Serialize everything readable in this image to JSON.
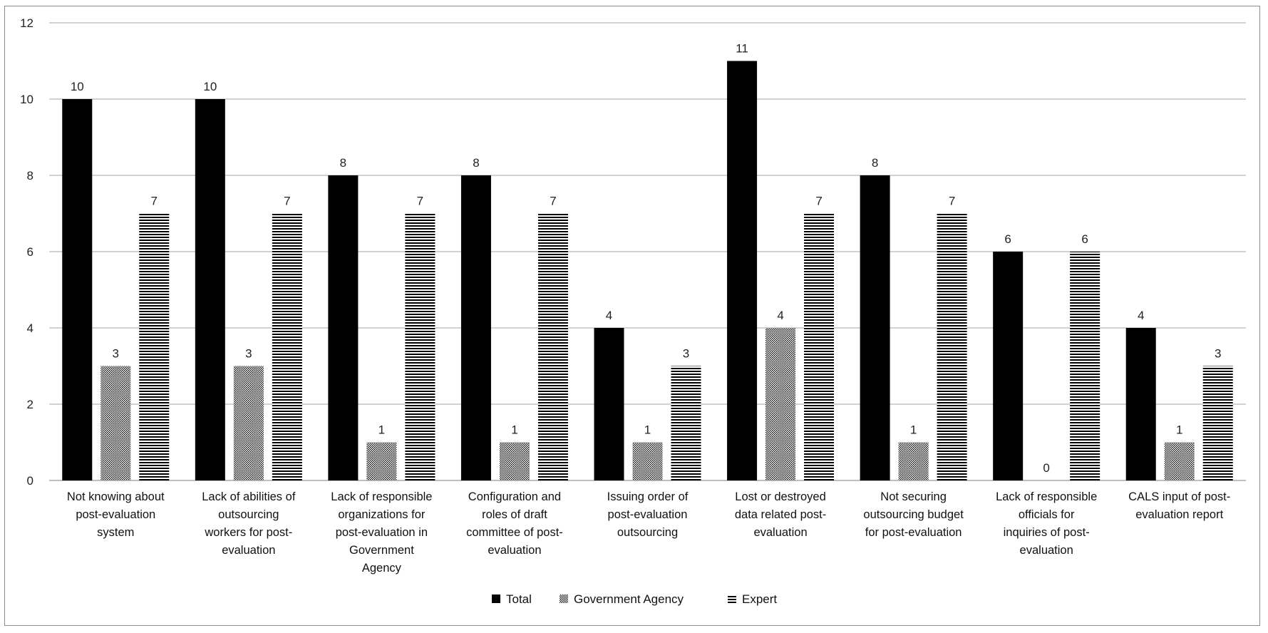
{
  "chart_data": {
    "type": "bar",
    "categories": [
      "Not knowing about post-evaluation system",
      "Lack of abilities of outsourcing workers for post-evaluation",
      "Lack of responsible organizations for post-evaluation in Government Agency",
      "Configuration and roles of draft committee of post-evaluation",
      "Issuing order of post-evaluation outsourcing",
      "Lost or destroyed data related post-evaluation",
      "Not securing outsourcing budget for post-evaluation",
      "Lack of responsible officials for inquiries of post-evaluation",
      "CALS input of post-evaluation report"
    ],
    "category_lines": [
      [
        "Not knowing about",
        "post-evaluation",
        "system"
      ],
      [
        "Lack of abilities of",
        "outsourcing",
        "workers for post-",
        "evaluation"
      ],
      [
        "Lack of responsible",
        "organizations for",
        "post-evaluation in",
        "Government",
        "Agency"
      ],
      [
        "Configuration and",
        "roles of draft",
        "committee of post-",
        "evaluation"
      ],
      [
        "Issuing order of",
        "post-evaluation",
        "outsourcing"
      ],
      [
        "Lost or destroyed",
        "data related post-",
        "evaluation"
      ],
      [
        "Not securing",
        "outsourcing budget",
        "for post-evaluation"
      ],
      [
        "Lack of responsible",
        "officials for",
        "inquiries of post-",
        "evaluation"
      ],
      [
        "CALS input of post-",
        "evaluation report"
      ]
    ],
    "series": [
      {
        "name": "Total",
        "values": [
          10,
          10,
          8,
          8,
          4,
          11,
          8,
          6,
          4
        ],
        "fill": "solid",
        "color": "#000000"
      },
      {
        "name": "Government Agency",
        "values": [
          3,
          3,
          1,
          1,
          1,
          4,
          1,
          0,
          1
        ],
        "fill": "dotted",
        "color": "#000000"
      },
      {
        "name": "Expert",
        "values": [
          7,
          7,
          7,
          7,
          3,
          7,
          7,
          6,
          3
        ],
        "fill": "horizontal-lines",
        "color": "#000000"
      }
    ],
    "ylim": [
      0,
      12
    ],
    "yticks": [
      0,
      2,
      4,
      6,
      8,
      10,
      12
    ],
    "grid": true,
    "legend_position": "bottom-center",
    "title": "",
    "xlabel": "",
    "ylabel": ""
  }
}
